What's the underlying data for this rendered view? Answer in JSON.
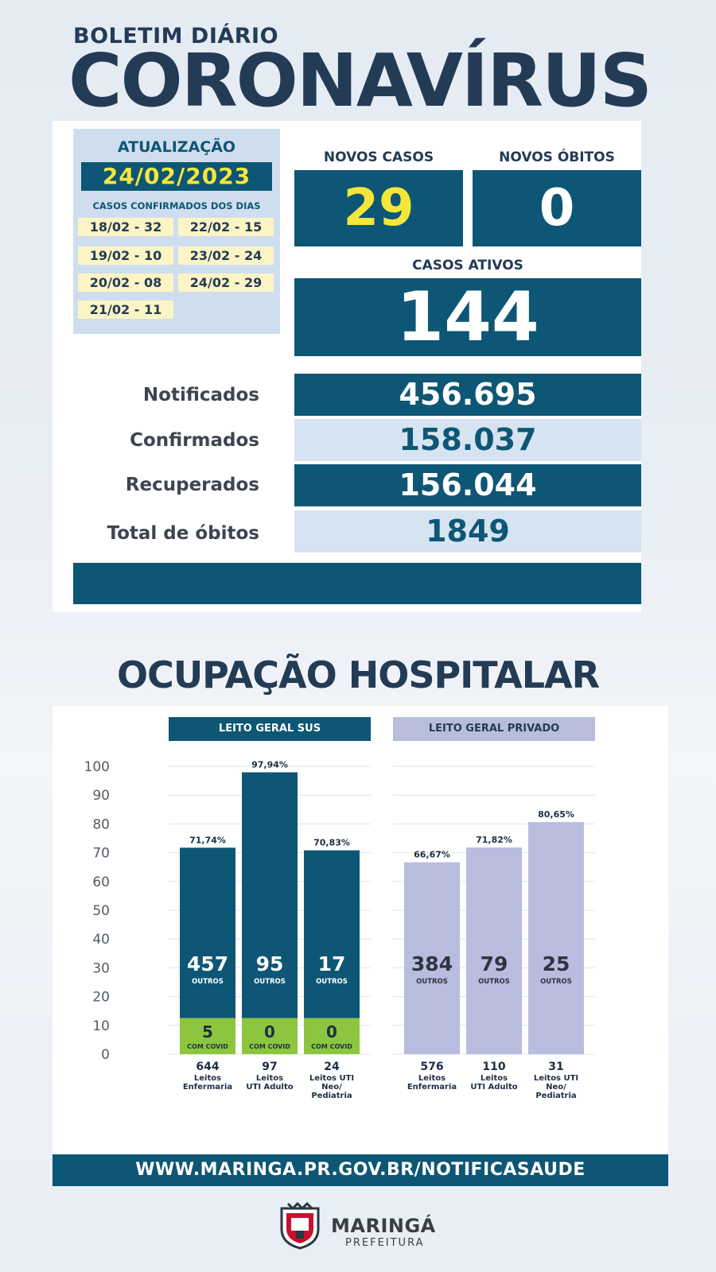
{
  "header": {
    "subtitle": "BOLETIM DIÁRIO",
    "title": "CORONAVÍRUS"
  },
  "update": {
    "label": "ATUALIZAÇÃO",
    "date": "24/02/2023",
    "cases_days_label": "CASOS CONFIRMADOS DOS DIAS",
    "days": [
      "18/02 - 32",
      "22/02 - 15",
      "19/02 - 10",
      "23/02 - 24",
      "20/02 - 08",
      "24/02 - 29",
      "21/02 - 11"
    ]
  },
  "stats": {
    "novos_casos_label": "NOVOS CASOS",
    "novos_casos": "29",
    "novos_obitos_label": "NOVOS ÓBITOS",
    "novos_obitos": "0",
    "casos_ativos_label": "CASOS ATIVOS",
    "casos_ativos": "144"
  },
  "totals": [
    {
      "label": "Notificados",
      "value": "456.695"
    },
    {
      "label": "Confirmados",
      "value": "158.037"
    },
    {
      "label": "Recuperados",
      "value": "156.044"
    },
    {
      "label": "Total de óbitos",
      "value": "1849"
    }
  ],
  "hospital": {
    "title": "OCUPAÇÃO HOSPITALAR",
    "url": "WWW.MARINGA.PR.GOV.BR/NOTIFICASAUDE"
  },
  "colors": {
    "dark_blue": "#0e5675",
    "covid_green": "#8cc63f",
    "private_lavender": "#b8bde0",
    "highlight_yellow": "#f4e73a"
  },
  "chart_data": {
    "type": "bar",
    "ylim": [
      0,
      100
    ],
    "yticks": [
      0,
      10,
      20,
      30,
      40,
      50,
      60,
      70,
      80,
      90,
      100
    ],
    "grid": true,
    "panels": [
      {
        "name": "LEITO GERAL SUS",
        "bars": [
          {
            "pct": 71.74,
            "pct_label": "71,74%",
            "outros": "457",
            "outros_label": "OUTROS",
            "covid": "5",
            "covid_label": "COM COVID",
            "total": "644",
            "category": "Leitos Enfermaria"
          },
          {
            "pct": 97.94,
            "pct_label": "97,94%",
            "outros": "95",
            "outros_label": "OUTROS",
            "covid": "0",
            "covid_label": "COM COVID",
            "total": "97",
            "category": "Leitos UTI Adulto"
          },
          {
            "pct": 70.83,
            "pct_label": "70,83%",
            "outros": "17",
            "outros_label": "OUTROS",
            "covid": "0",
            "covid_label": "COM COVID",
            "total": "24",
            "category": "Leitos UTI Neo/ Pediatria"
          }
        ]
      },
      {
        "name": "LEITO GERAL PRIVADO",
        "bars": [
          {
            "pct": 66.67,
            "pct_label": "66,67%",
            "outros": "384",
            "outros_label": "OUTROS",
            "total": "576",
            "category": "Leitos Enfermaria"
          },
          {
            "pct": 71.82,
            "pct_label": "71,82%",
            "outros": "79",
            "outros_label": "OUTROS",
            "total": "110",
            "category": "Leitos UTI Adulto"
          },
          {
            "pct": 80.65,
            "pct_label": "80,65%",
            "outros": "25",
            "outros_label": "OUTROS",
            "total": "31",
            "category": "Leitos UTI Neo/ Pediatria"
          }
        ]
      }
    ]
  },
  "logo": {
    "seal_icon": "coat-of-arms-icon",
    "name": "MARINGÁ",
    "sub": "PREFEITURA"
  }
}
